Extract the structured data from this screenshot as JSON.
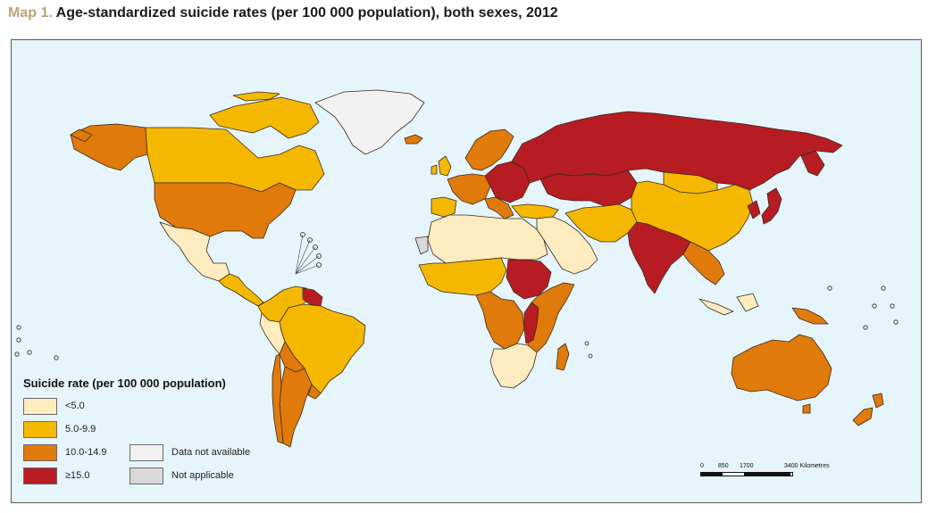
{
  "title": {
    "prefix": "Map 1.",
    "text": "Age-standardized suicide rates (per 100 000 population), both sexes, 2012"
  },
  "colors": {
    "ocean": "#e6f4fb",
    "lt5": "#fdecbf",
    "c5to9": "#f5b800",
    "c10to14": "#e07a0a",
    "ge15": "#b71c22",
    "no_data": "#f2f2f2",
    "not_applicable": "#d9d9d9"
  },
  "legend": {
    "title": "Suicide rate (per 100 000 population)",
    "items": [
      {
        "label": "<5.0",
        "color": "#fdecbf"
      },
      {
        "label": "5.0-9.9",
        "color": "#f5b800"
      },
      {
        "label": "10.0-14.9",
        "color": "#e07a0a"
      },
      {
        "label": "≥15.0",
        "color": "#b71c22"
      }
    ],
    "extra": [
      {
        "label": "Data not available",
        "color": "#f2f2f2"
      },
      {
        "label": "Not applicable",
        "color": "#d9d9d9"
      }
    ]
  },
  "scale": {
    "labels": [
      "0",
      "850",
      "1700",
      "3400 Kilometres"
    ]
  },
  "regions": [
    {
      "name": "alaska",
      "category": "c10to14"
    },
    {
      "name": "canada",
      "category": "c5to9"
    },
    {
      "name": "usa",
      "category": "c10to14"
    },
    {
      "name": "mexico",
      "category": "lt5"
    },
    {
      "name": "central-america",
      "category": "c5to9"
    },
    {
      "name": "greenland",
      "category": "no_data"
    },
    {
      "name": "colombia-venezuela",
      "category": "c5to9"
    },
    {
      "name": "guyana-suriname",
      "category": "ge15"
    },
    {
      "name": "brazil",
      "category": "c5to9"
    },
    {
      "name": "peru",
      "category": "lt5"
    },
    {
      "name": "bolivia",
      "category": "c10to14"
    },
    {
      "name": "argentina",
      "category": "c10to14"
    },
    {
      "name": "chile",
      "category": "c10to14"
    },
    {
      "name": "uruguay",
      "category": "c10to14"
    },
    {
      "name": "iceland",
      "category": "c10to14"
    },
    {
      "name": "uk-ireland",
      "category": "c5to9"
    },
    {
      "name": "scandinavia",
      "category": "c10to14"
    },
    {
      "name": "western-europe",
      "category": "c10to14"
    },
    {
      "name": "iberia",
      "category": "c5to9"
    },
    {
      "name": "eastern-europe",
      "category": "ge15"
    },
    {
      "name": "russia",
      "category": "ge15"
    },
    {
      "name": "kazakhstan",
      "category": "ge15"
    },
    {
      "name": "middle-east",
      "category": "lt5"
    },
    {
      "name": "turkey",
      "category": "c5to9"
    },
    {
      "name": "iran-afghanistan",
      "category": "c5to9"
    },
    {
      "name": "india",
      "category": "ge15"
    },
    {
      "name": "china",
      "category": "c5to9"
    },
    {
      "name": "mongolia",
      "category": "c5to9"
    },
    {
      "name": "korea-japan",
      "category": "ge15"
    },
    {
      "name": "southeast-asia",
      "category": "c10to14"
    },
    {
      "name": "indonesia",
      "category": "lt5"
    },
    {
      "name": "north-africa",
      "category": "lt5"
    },
    {
      "name": "west-africa",
      "category": "c5to9"
    },
    {
      "name": "sudan",
      "category": "ge15"
    },
    {
      "name": "central-africa",
      "category": "c10to14"
    },
    {
      "name": "east-africa",
      "category": "c10to14"
    },
    {
      "name": "southern-africa",
      "category": "lt5"
    },
    {
      "name": "madagascar",
      "category": "c10to14"
    },
    {
      "name": "australia",
      "category": "c10to14"
    },
    {
      "name": "new-zealand",
      "category": "c10to14"
    },
    {
      "name": "papua",
      "category": "c10to14"
    },
    {
      "name": "western-sahara",
      "category": "not_applicable"
    }
  ]
}
